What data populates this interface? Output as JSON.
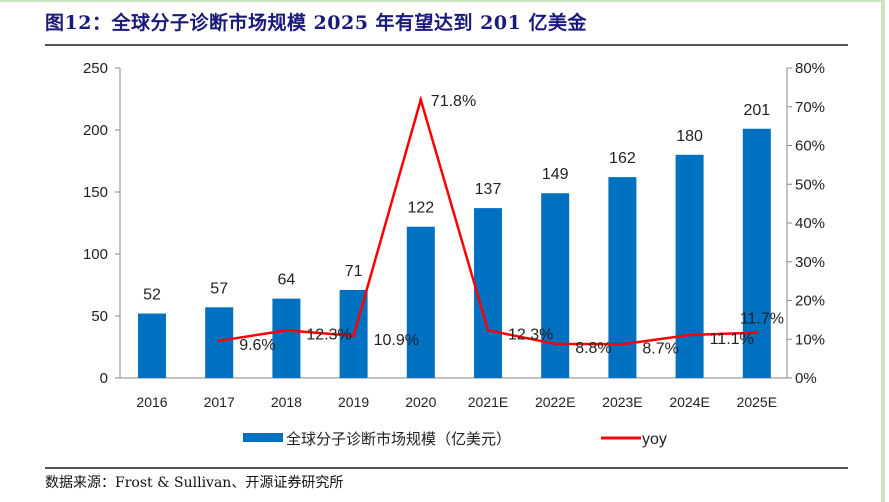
{
  "title": "图12：全球分子诊断市场规模 2025 年有望达到 201 亿美金",
  "source": "数据来源：Frost & Sullivan、开源证券研究所",
  "chart_data": {
    "type": "bar+line",
    "categories": [
      "2016",
      "2017",
      "2018",
      "2019",
      "2020",
      "2021E",
      "2022E",
      "2023E",
      "2024E",
      "2025E"
    ],
    "series": [
      {
        "name": "全球分子诊断市场规模（亿美元）",
        "type": "bar",
        "axis": "left",
        "color": "#0070c0",
        "values": [
          52,
          57,
          64,
          71,
          122,
          137,
          149,
          162,
          180,
          201
        ],
        "labels": [
          "52",
          "57",
          "64",
          "71",
          "122",
          "137",
          "149",
          "162",
          "180",
          "201"
        ]
      },
      {
        "name": "yoy",
        "type": "line",
        "axis": "right",
        "color": "#ff0000",
        "values": [
          null,
          9.6,
          12.3,
          10.9,
          71.8,
          12.3,
          8.8,
          8.7,
          11.1,
          11.7
        ],
        "labels": [
          "",
          "9.6%",
          "12.3%",
          "10.9%",
          "71.8%",
          "12.3%",
          "8.8%",
          "8.7%",
          "11.1%",
          "11.7%"
        ]
      }
    ],
    "y_left": {
      "range": [
        0,
        250
      ],
      "ticks": [
        "0",
        "50",
        "100",
        "150",
        "200",
        "250"
      ]
    },
    "y_right": {
      "range": [
        0,
        80
      ],
      "ticks": [
        "0%",
        "10%",
        "20%",
        "30%",
        "40%",
        "50%",
        "60%",
        "70%",
        "80%"
      ]
    },
    "grid": false,
    "legend_position": "bottom"
  }
}
